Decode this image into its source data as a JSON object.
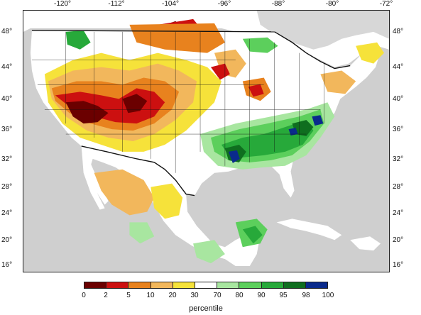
{
  "map": {
    "lon_ticks": [
      "-120°",
      "-112°",
      "-104°",
      "-96°",
      "-88°",
      "-80°",
      "-72°"
    ],
    "lat_ticks_left": [
      "48°",
      "44°",
      "40°",
      "36°",
      "32°",
      "28°",
      "24°",
      "20°",
      "16°"
    ],
    "lat_ticks_right": [
      "48°",
      "44°",
      "40°",
      "36°",
      "32°",
      "28°",
      "24°",
      "20°",
      "16°"
    ],
    "ocean_color": "#cfcfcf",
    "land_color": "#ffffff",
    "border_color": "#111111"
  },
  "legend": {
    "title": "percentile",
    "ticks": [
      "0",
      "2",
      "5",
      "10",
      "20",
      "30",
      "70",
      "80",
      "90",
      "95",
      "98",
      "100"
    ],
    "colors": [
      "#6b0000",
      "#cc1010",
      "#e8821e",
      "#f2b75c",
      "#f6e23a",
      "#ffffff",
      "#a8e6a0",
      "#5ccf5c",
      "#27a93a",
      "#0f6e1f",
      "#0a2a8c"
    ]
  }
}
